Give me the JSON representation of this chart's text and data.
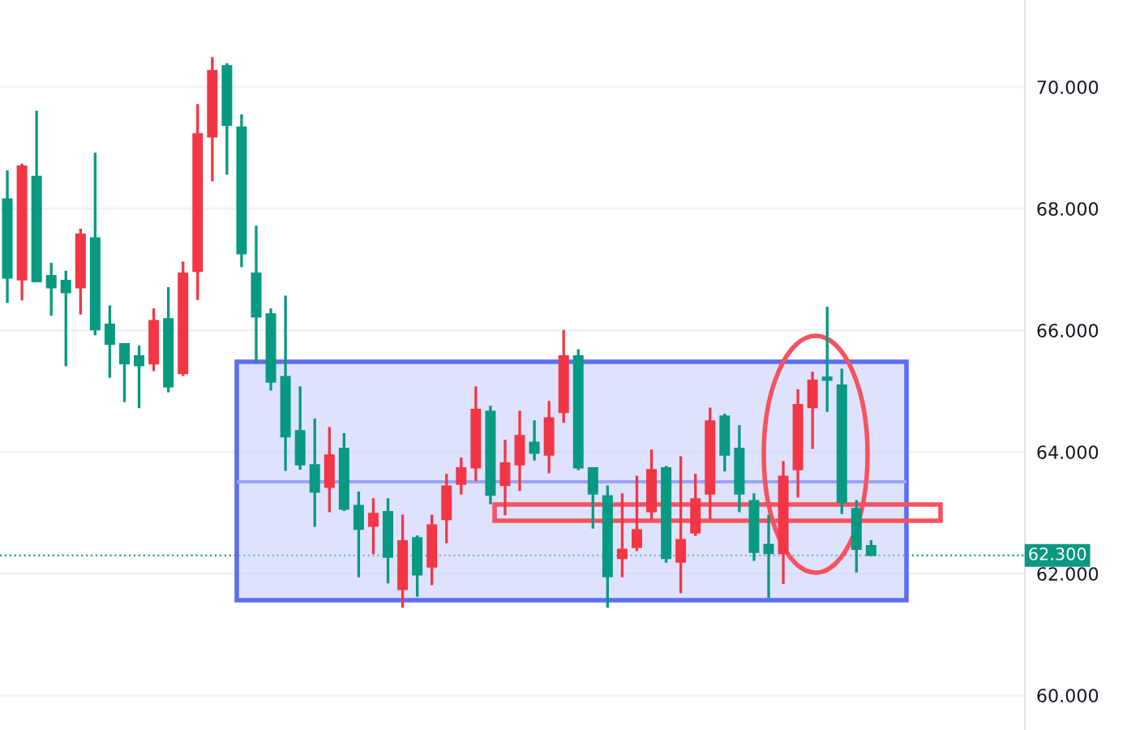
{
  "chart_data": {
    "type": "candlestick",
    "categories": [
      null,
      null,
      null,
      null,
      null,
      null,
      null,
      null,
      null,
      null,
      null,
      null,
      null,
      null,
      null,
      null,
      null,
      null,
      null,
      null,
      null,
      null,
      null,
      null,
      null,
      null,
      null,
      null,
      null,
      null,
      null,
      null,
      null,
      null,
      null,
      null,
      null,
      null,
      null,
      null,
      null,
      null,
      null,
      null,
      null,
      null,
      null,
      null,
      null,
      null,
      null,
      null,
      null,
      null,
      null,
      null,
      null,
      null,
      null,
      null,
      null,
      null,
      null,
      null,
      null,
      null,
      null,
      null,
      null,
      null
    ],
    "ohlc": [
      [
        66.85,
        68.63,
        66.45,
        68.17
      ],
      [
        68.71,
        68.74,
        66.49,
        66.82
      ],
      [
        66.79,
        69.61,
        66.79,
        68.54
      ],
      [
        66.69,
        67.11,
        66.24,
        66.91
      ],
      [
        66.61,
        66.98,
        65.41,
        66.83
      ],
      [
        67.59,
        67.67,
        66.26,
        66.69
      ],
      [
        66.0,
        68.92,
        65.92,
        67.53
      ],
      [
        65.76,
        66.41,
        65.22,
        66.11
      ],
      [
        65.44,
        65.79,
        64.82,
        65.79
      ],
      [
        65.41,
        65.75,
        64.72,
        65.59
      ],
      [
        66.17,
        66.36,
        65.33,
        65.44
      ],
      [
        65.06,
        66.71,
        64.98,
        66.2
      ],
      [
        66.95,
        67.13,
        65.25,
        65.28
      ],
      [
        69.24,
        69.72,
        66.5,
        66.96
      ],
      [
        70.28,
        70.49,
        68.45,
        69.17
      ],
      [
        69.36,
        70.39,
        68.56,
        70.36
      ],
      [
        67.25,
        69.55,
        67.04,
        69.35
      ],
      [
        66.21,
        67.72,
        65.47,
        66.95
      ],
      [
        65.14,
        66.36,
        65.01,
        66.28
      ],
      [
        64.24,
        66.57,
        63.69,
        65.25
      ],
      [
        63.78,
        65.08,
        63.71,
        64.36
      ],
      [
        63.33,
        64.55,
        62.77,
        63.8
      ],
      [
        63.96,
        64.41,
        63.01,
        63.41
      ],
      [
        63.05,
        64.31,
        63.03,
        64.07
      ],
      [
        62.72,
        63.35,
        61.94,
        63.13
      ],
      [
        63.0,
        63.24,
        62.32,
        62.77
      ],
      [
        62.26,
        63.24,
        61.84,
        63.03
      ],
      [
        62.55,
        62.97,
        61.44,
        61.73
      ],
      [
        61.97,
        62.63,
        61.62,
        62.6
      ],
      [
        62.81,
        62.97,
        61.81,
        62.1
      ],
      [
        63.45,
        63.64,
        62.5,
        62.88
      ],
      [
        63.75,
        63.91,
        63.3,
        63.46
      ],
      [
        64.71,
        65.08,
        63.52,
        63.73
      ],
      [
        63.28,
        64.76,
        63.14,
        64.68
      ],
      [
        63.83,
        64.2,
        62.96,
        63.44
      ],
      [
        64.28,
        64.68,
        63.36,
        63.78
      ],
      [
        63.97,
        64.52,
        63.86,
        64.17
      ],
      [
        64.57,
        64.84,
        63.65,
        63.94
      ],
      [
        65.59,
        66.01,
        64.48,
        64.64
      ],
      [
        63.73,
        65.69,
        63.7,
        65.59
      ],
      [
        63.3,
        63.75,
        62.74,
        63.75
      ],
      [
        61.94,
        63.45,
        61.44,
        63.29
      ],
      [
        62.41,
        63.32,
        61.94,
        62.24
      ],
      [
        62.73,
        63.61,
        62.37,
        62.42
      ],
      [
        63.72,
        64.04,
        62.9,
        63.01
      ],
      [
        62.24,
        63.77,
        62.18,
        63.75
      ],
      [
        62.57,
        63.93,
        61.68,
        62.18
      ],
      [
        63.24,
        63.64,
        62.62,
        62.66
      ],
      [
        64.52,
        64.73,
        62.9,
        63.3
      ],
      [
        63.94,
        64.63,
        63.68,
        64.6
      ],
      [
        63.3,
        64.44,
        63.01,
        64.07
      ],
      [
        62.34,
        63.32,
        62.21,
        63.21
      ],
      [
        62.32,
        62.97,
        61.6,
        62.49
      ],
      [
        63.61,
        63.85,
        61.83,
        62.32
      ],
      [
        64.79,
        65.03,
        63.25,
        63.7
      ],
      [
        65.19,
        65.32,
        64.05,
        64.72
      ],
      [
        65.17,
        66.39,
        64.66,
        65.24
      ],
      [
        63.16,
        65.37,
        62.98,
        65.11
      ],
      [
        62.39,
        63.21,
        62.02,
        63.08
      ],
      [
        62.29,
        62.55,
        62.29,
        62.47
      ],
      null,
      null,
      null,
      null,
      null,
      null,
      null,
      null,
      null,
      null
    ],
    "colors": [
      "#089981",
      "#f23645",
      "#089981",
      "#089981",
      "#089981",
      "#f23645",
      "#089981",
      "#089981",
      "#089981",
      "#089981",
      "#f23645",
      "#089981",
      "#f23645",
      "#f23645",
      "#f23645",
      "#089981",
      "#089981",
      "#089981",
      "#089981",
      "#089981",
      "#089981",
      "#089981",
      "#f23645",
      "#089981",
      "#089981",
      "#f23645",
      "#089981",
      "#f23645",
      "#089981",
      "#f23645",
      "#f23645",
      "#f23645",
      "#f23645",
      "#089981",
      "#f23645",
      "#f23645",
      "#089981",
      "#f23645",
      "#f23645",
      "#089981",
      "#089981",
      "#089981",
      "#f23645",
      "#f23645",
      "#f23645",
      "#089981",
      "#f23645",
      "#f23645",
      "#f23645",
      "#089981",
      "#089981",
      "#089981",
      "#089981",
      "#f23645",
      "#f23645",
      "#f23645",
      "#089981",
      "#089981",
      "#089981",
      "#089981",
      null,
      null,
      null,
      null,
      null,
      null,
      null,
      null,
      null,
      null
    ],
    "ylim": [
      59.43,
      71.43
    ],
    "yticks": [
      {
        "value": 60,
        "label": "60.000"
      },
      {
        "value": 62,
        "label": "62.000"
      },
      {
        "value": 64,
        "label": "64.000"
      },
      {
        "value": 66,
        "label": "66.000"
      },
      {
        "value": 68,
        "label": "68.000"
      },
      {
        "value": 70,
        "label": "70.000"
      }
    ],
    "tick_labels": "y",
    "grid": "y",
    "ref_lines": [
      {
        "axis": "y",
        "value": 62.3,
        "label": "62.300",
        "color": "#089981",
        "line_style": "dotted"
      }
    ]
  }
}
